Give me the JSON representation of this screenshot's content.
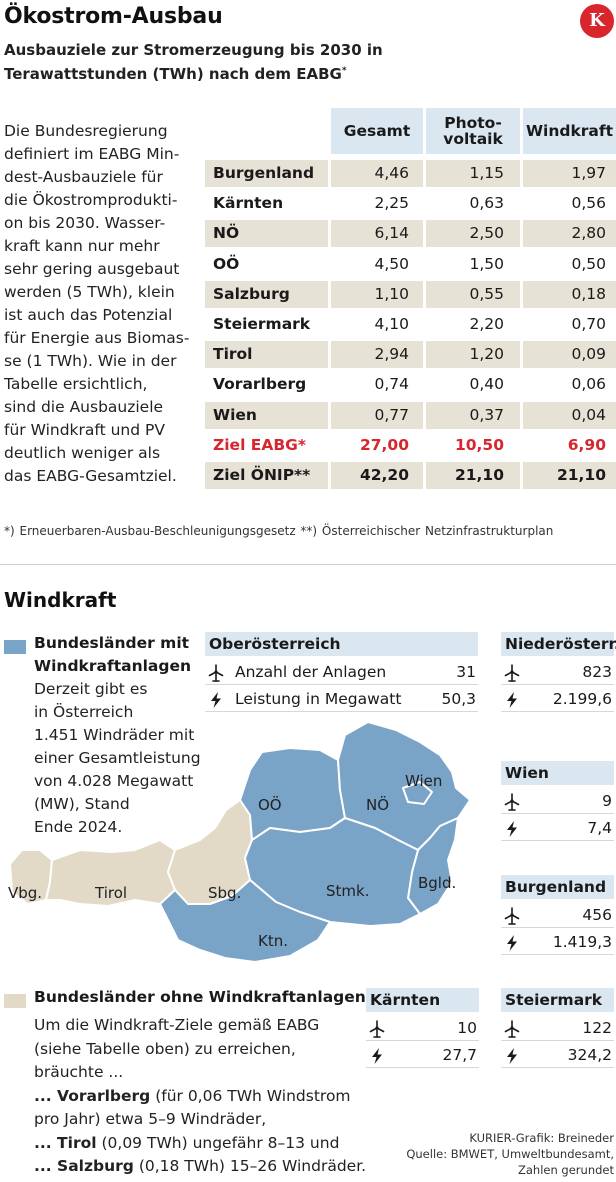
{
  "header": {
    "title": "Ökostrom-Ausbau",
    "subtitle": "Ausbauziele zur Stromerzeugung bis 2030 in Terawattstunden (TWh) nach dem EABG",
    "subtitle_mark": "*",
    "logo_letter": "K"
  },
  "intro_lines": [
    "Die Bundesregierung",
    "definiert im EABG Min-",
    "dest-Ausbauziele für",
    "die Ökostromprodukti-",
    "on bis 2030. Wasser-",
    "kraft kann nur mehr",
    "sehr gering ausgebaut",
    "werden (5 TWh), klein",
    "ist auch das Potenzial",
    "für Energie aus Biomas-",
    "se (1 TWh). Wie in der",
    "Tabelle ersichtlich,",
    "sind die Ausbauziele",
    "für Windkraft und PV",
    "deutlich weniger als",
    "das EABG-Gesamtziel."
  ],
  "table": {
    "headers": [
      "Gesamt",
      "Photo-\nvoltaik",
      "Windkraft"
    ],
    "header_lines": [
      [
        "Gesamt"
      ],
      [
        "Photo-",
        "voltaik"
      ],
      [
        "Windkraft"
      ]
    ],
    "rows": [
      {
        "label": "Burgenland",
        "gesamt": "4,46",
        "pv": "1,15",
        "wind": "1,97"
      },
      {
        "label": "Kärnten",
        "gesamt": "2,25",
        "pv": "0,63",
        "wind": "0,56"
      },
      {
        "label": "NÖ",
        "gesamt": "6,14",
        "pv": "2,50",
        "wind": "2,80"
      },
      {
        "label": "OÖ",
        "gesamt": "4,50",
        "pv": "1,50",
        "wind": "0,50"
      },
      {
        "label": "Salzburg",
        "gesamt": "1,10",
        "pv": "0,55",
        "wind": "0,18"
      },
      {
        "label": "Steiermark",
        "gesamt": "4,10",
        "pv": "2,20",
        "wind": "0,70"
      },
      {
        "label": "Tirol",
        "gesamt": "2,94",
        "pv": "1,20",
        "wind": "0,09"
      },
      {
        "label": "Vorarlberg",
        "gesamt": "0,74",
        "pv": "0,40",
        "wind": "0,06"
      },
      {
        "label": "Wien",
        "gesamt": "0,77",
        "pv": "0,37",
        "wind": "0,04"
      }
    ],
    "ziel_eabg": {
      "label": "Ziel EABG*",
      "gesamt": "27,00",
      "pv": "10,50",
      "wind": "6,90"
    },
    "ziel_oenip": {
      "label": "Ziel ÖNIP**",
      "gesamt": "42,20",
      "pv": "21,10",
      "wind": "21,10"
    }
  },
  "footnote": "*) Erneuerbaren-Ausbau-Beschleunigungsgesetz   **) Österreichischer Netzinfrastrukturplan",
  "windkraft": {
    "title": "Windkraft",
    "legend_with": {
      "title_lines": [
        "Bundesländer mit",
        "Windkraftanlagen"
      ],
      "text_lines": [
        "Derzeit gibt es",
        "in Österreich",
        "1.451 Windräder mit",
        "einer Gesamtleistung",
        "von 4.028 Megawatt",
        "(MW), Stand",
        "Ende 2024."
      ]
    },
    "legend_without": {
      "title": "Bundesländer ohne Windkraftanlagen",
      "text_lines": [
        "Um die Windkraft-Ziele gemäß EABG",
        "(siehe Tabelle oben) zu erreichen,",
        "bräuchte ..."
      ],
      "items": [
        {
          "bold": "... Vorarlberg",
          "rest": " (für 0,06 TWh Windstrom",
          "rest2": "pro Jahr) etwa 5–9 Windräder,"
        },
        {
          "bold": "... Tirol",
          "rest": " (0,09 TWh) ungefähr 8–13 und"
        },
        {
          "bold": "... Salzburg",
          "rest": " (0,18 TWh) 15–26 Windräder."
        }
      ]
    },
    "box_labels": {
      "count": "Anzahl der Anlagen",
      "power": "Leistung in Megawatt"
    },
    "boxes": [
      {
        "name": "Oberösterreich",
        "count": "31",
        "power": "50,3"
      },
      {
        "name": "Niederösterr.",
        "count": "823",
        "power": "2.199,6"
      },
      {
        "name": "Wien",
        "count": "9",
        "power": "7,4"
      },
      {
        "name": "Burgenland",
        "count": "456",
        "power": "1.419,3"
      },
      {
        "name": "Kärnten",
        "count": "10",
        "power": "27,7"
      },
      {
        "name": "Steiermark",
        "count": "122",
        "power": "324,2"
      }
    ],
    "map_labels": {
      "vbg": "Vbg.",
      "tirol": "Tirol",
      "sbg": "Sbg.",
      "ooe": "OÖ",
      "noe": "NÖ",
      "wien": "Wien",
      "stmk": "Stmk.",
      "bgld": "Bgld.",
      "ktn": "Ktn."
    },
    "colors": {
      "with": "#7aa3c8",
      "without": "#e2d9c7",
      "header_blue": "#dae6f0",
      "accent_red": "#d7262d"
    }
  },
  "credit_lines": [
    "KURIER-Grafik: Breineder",
    "Quelle: BMWET, Umweltbundesamt,",
    "Zahlen gerundet"
  ]
}
